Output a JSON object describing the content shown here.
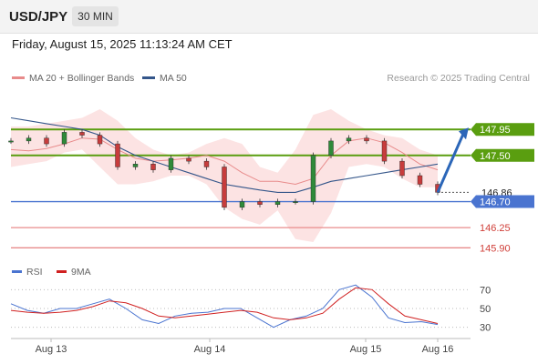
{
  "header": {
    "symbol": "USD/JPY",
    "timeframe": "30 MIN"
  },
  "datetime": "Friday, August 15, 2025 11:13:24 AM CET",
  "legend": {
    "ma20": {
      "label": "MA 20 + Bollinger Bands",
      "color": "#e88b8b"
    },
    "ma50": {
      "label": "MA 50",
      "color": "#34568a"
    }
  },
  "credit": "Research © 2025 Trading Central",
  "rsi_legend": {
    "rsi": {
      "label": "RSI",
      "color": "#4a74d0"
    },
    "ma9": {
      "label": "9MA",
      "color": "#d02020"
    }
  },
  "chart_data": [
    {
      "type": "line",
      "panel": "price",
      "y_range": [
        145.7,
        148.3
      ],
      "x_tick_labels": [
        "Aug 13",
        "Aug 14",
        "Aug 15",
        "Aug 16"
      ],
      "series": [
        {
          "name": "MA 20",
          "color": "#e88b8b",
          "values": [
            147.6,
            147.58,
            147.62,
            147.7,
            147.8,
            147.78,
            147.6,
            147.45,
            147.4,
            147.42,
            147.45,
            147.5,
            147.4,
            147.2,
            147.05,
            147.05,
            147.0,
            147.1,
            147.5,
            147.75,
            147.8,
            147.72,
            147.55,
            147.35,
            147.25
          ]
        },
        {
          "name": "MA 50",
          "color": "#34568a",
          "values": [
            148.15,
            148.1,
            148.05,
            148.0,
            147.95,
            147.85,
            147.65,
            147.5,
            147.4,
            147.3,
            147.2,
            147.1,
            147.0,
            146.95,
            146.9,
            146.86,
            146.86,
            146.95,
            147.05,
            147.1,
            147.15,
            147.2,
            147.25,
            147.3,
            147.35
          ]
        },
        {
          "name": "Upper Bollinger Band",
          "color": "#fbd5d5",
          "values": [
            148.0,
            148.0,
            148.05,
            148.1,
            148.15,
            148.3,
            148.1,
            147.8,
            147.6,
            147.5,
            147.55,
            147.7,
            147.8,
            147.7,
            147.3,
            147.2,
            147.6,
            148.2,
            148.3,
            148.1,
            147.95,
            147.85,
            147.8,
            147.6,
            147.5
          ]
        },
        {
          "name": "Lower Bollinger Band",
          "color": "#fbd5d5",
          "values": [
            147.3,
            147.35,
            147.4,
            147.55,
            147.6,
            147.3,
            147.0,
            147.0,
            147.05,
            147.15,
            147.15,
            147.0,
            146.6,
            146.4,
            146.3,
            146.55,
            146.05,
            146.0,
            146.5,
            147.3,
            147.35,
            147.3,
            147.1,
            146.95,
            146.95
          ]
        },
        {
          "name": "Close",
          "color": "#222222",
          "values": [
            147.75,
            147.8,
            147.7,
            147.9,
            147.85,
            147.7,
            147.3,
            147.35,
            147.25,
            147.45,
            147.4,
            147.3,
            146.6,
            146.7,
            146.65,
            146.7,
            146.7,
            147.5,
            147.75,
            147.8,
            147.75,
            147.4,
            147.15,
            147.0,
            146.86
          ]
        }
      ],
      "forecast": {
        "from": 146.86,
        "to": 147.95
      },
      "levels": [
        {
          "label": "147.95",
          "value": 147.95,
          "kind": "resistance",
          "color": "#5a9e10"
        },
        {
          "label": "147.50",
          "value": 147.5,
          "kind": "resistance",
          "color": "#5a9e10"
        },
        {
          "label": "146.86",
          "value": 146.86,
          "kind": "last",
          "color": "#444444"
        },
        {
          "label": "146.70",
          "value": 146.7,
          "kind": "pivot",
          "color": "#4a74d0"
        },
        {
          "label": "146.25",
          "value": 146.25,
          "kind": "support",
          "color": "#e88b8b"
        },
        {
          "label": "145.90",
          "value": 145.9,
          "kind": "support",
          "color": "#e88b8b"
        }
      ]
    },
    {
      "type": "line",
      "panel": "rsi",
      "y_range": [
        20,
        80
      ],
      "y_tick_labels": [
        "70",
        "50",
        "30"
      ],
      "series": [
        {
          "name": "RSI",
          "color": "#4a74d0",
          "values": [
            55,
            48,
            45,
            50,
            50,
            55,
            60,
            50,
            38,
            34,
            42,
            45,
            46,
            50,
            50,
            40,
            30,
            38,
            42,
            50,
            70,
            75,
            62,
            40,
            35,
            36,
            33
          ]
        },
        {
          "name": "9MA",
          "color": "#d02020",
          "values": [
            48,
            46,
            45,
            46,
            48,
            52,
            58,
            56,
            50,
            42,
            40,
            42,
            44,
            46,
            48,
            46,
            40,
            38,
            40,
            45,
            60,
            72,
            70,
            55,
            42,
            38,
            34
          ]
        }
      ]
    }
  ]
}
